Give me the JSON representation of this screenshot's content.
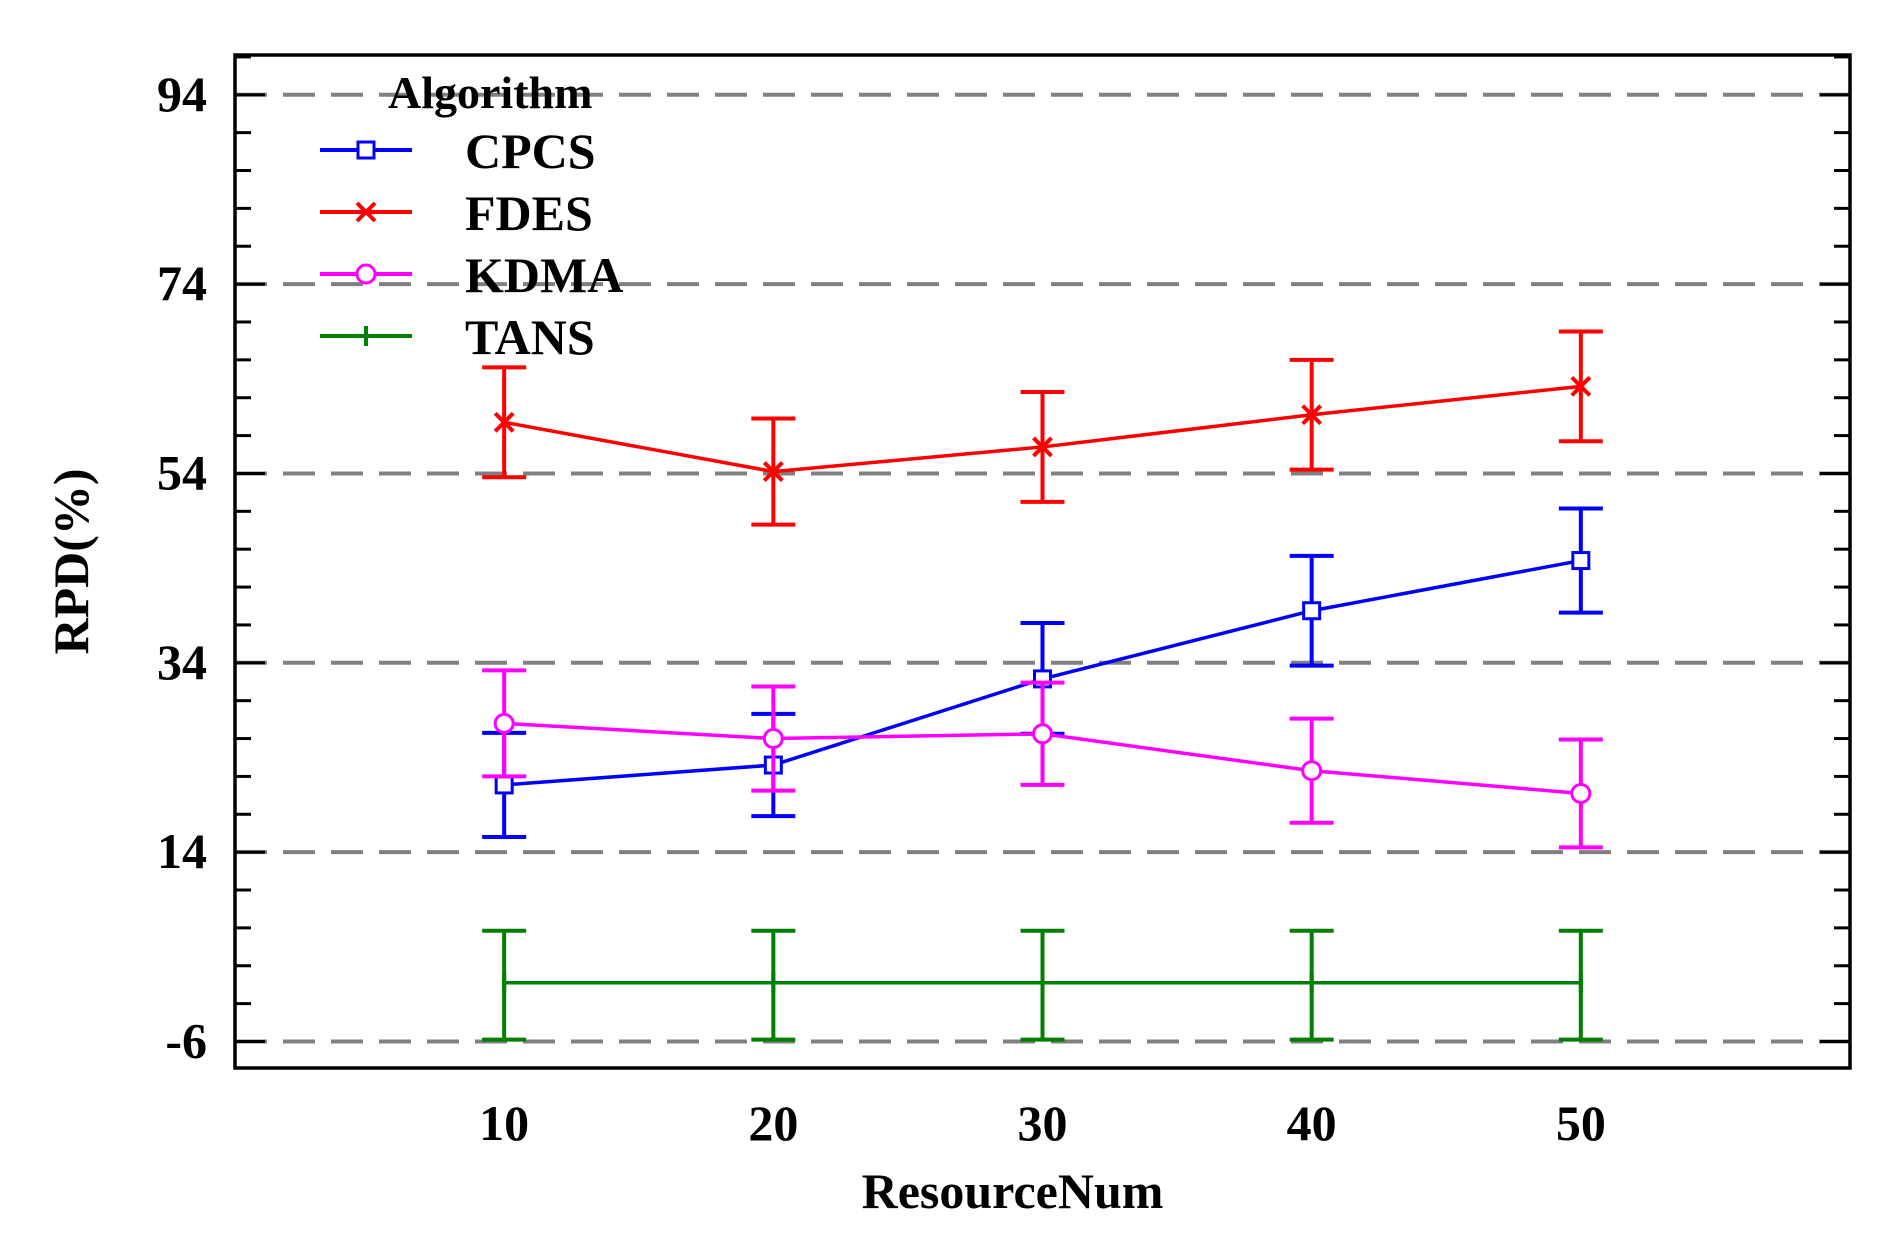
{
  "chart_data": {
    "type": "line",
    "title": "",
    "xlabel": "ResourceNum",
    "ylabel": "RPD(%)",
    "x": [
      10,
      20,
      30,
      40,
      50
    ],
    "xticks": [
      "10",
      "20",
      "30",
      "40",
      "50"
    ],
    "xlim": [
      0,
      60
    ],
    "yticks": [
      "94",
      "74",
      "54",
      "34",
      "14",
      "-6"
    ],
    "ylim": [
      -8.8,
      98.2
    ],
    "grid": "horizontal dashed at labeled y ticks",
    "legend": {
      "title": "Algorithm",
      "placement": "top-left"
    },
    "series": [
      {
        "name": "CPCS",
        "color": "#0000ff",
        "marker": "square",
        "values": [
          21.1,
          23.2,
          32.3,
          39.5,
          44.8
        ],
        "lower": [
          15.6,
          17.8,
          26.5,
          33.7,
          39.3
        ],
        "upper": [
          26.6,
          28.6,
          38.2,
          45.3,
          50.3
        ]
      },
      {
        "name": "FDES",
        "color": "#ff0000",
        "marker": "x",
        "values": [
          59.4,
          54.2,
          56.8,
          60.2,
          63.2
        ],
        "lower": [
          53.6,
          48.6,
          51.0,
          54.4,
          57.4
        ],
        "upper": [
          65.2,
          59.8,
          62.6,
          66.0,
          69.0
        ]
      },
      {
        "name": "KDMA",
        "color": "#ff00ff",
        "marker": "circle",
        "values": [
          27.6,
          26.0,
          26.5,
          22.6,
          20.2
        ],
        "lower": [
          22.0,
          20.5,
          21.1,
          17.1,
          14.5
        ],
        "upper": [
          33.2,
          31.5,
          31.9,
          28.1,
          25.9
        ]
      },
      {
        "name": "TANS",
        "color": "#008000",
        "marker": "plus",
        "values": [
          0.2,
          0.2,
          0.2,
          0.2,
          0.2
        ],
        "lower": [
          -5.8,
          -5.8,
          -5.8,
          -5.8,
          -5.8
        ],
        "upper": [
          5.7,
          5.7,
          5.7,
          5.7,
          5.7
        ]
      }
    ]
  }
}
